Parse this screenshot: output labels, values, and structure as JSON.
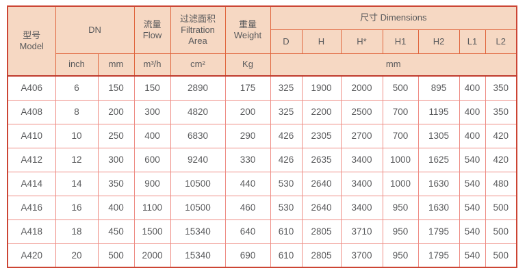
{
  "colors": {
    "header_bg": "#f6d8c3",
    "border_outer": "#cc4534",
    "border_header": "#e0653d",
    "border_data": "#ee8c84",
    "border_sep": "#bf3a2c",
    "text": "#58595b"
  },
  "table": {
    "header": {
      "model": "型号\nModel",
      "dn": "DN",
      "flow": "流量\nFlow",
      "filtration": "过滤面积\nFiltration\nArea",
      "weight": "重量\nWeight",
      "dimensions": "尺寸 Dimensions",
      "dim_cols": [
        "D",
        "H",
        "H*",
        "H1",
        "H2",
        "L1",
        "L2"
      ],
      "unit_inch": "inch",
      "unit_mm": "mm",
      "unit_flow": "m³/h",
      "unit_area": "cm²",
      "unit_weight": "Kg",
      "unit_dims": "mm"
    },
    "rows": [
      [
        "A406",
        "6",
        "150",
        "150",
        "2890",
        "175",
        "325",
        "1900",
        "2000",
        "500",
        "895",
        "400",
        "350"
      ],
      [
        "A408",
        "8",
        "200",
        "300",
        "4820",
        "200",
        "325",
        "2200",
        "2500",
        "700",
        "1195",
        "400",
        "350"
      ],
      [
        "A410",
        "10",
        "250",
        "400",
        "6830",
        "290",
        "426",
        "2305",
        "2700",
        "700",
        "1305",
        "400",
        "420"
      ],
      [
        "A412",
        "12",
        "300",
        "600",
        "9240",
        "330",
        "426",
        "2635",
        "3400",
        "1000",
        "1625",
        "540",
        "420"
      ],
      [
        "A414",
        "14",
        "350",
        "900",
        "10500",
        "440",
        "530",
        "2640",
        "3400",
        "1000",
        "1630",
        "540",
        "480"
      ],
      [
        "A416",
        "16",
        "400",
        "1100",
        "10500",
        "460",
        "530",
        "2640",
        "3400",
        "950",
        "1630",
        "540",
        "500"
      ],
      [
        "A418",
        "18",
        "450",
        "1500",
        "15340",
        "640",
        "610",
        "2805",
        "3710",
        "950",
        "1795",
        "540",
        "500"
      ],
      [
        "A420",
        "20",
        "500",
        "2000",
        "15340",
        "690",
        "610",
        "2805",
        "3700",
        "950",
        "1795",
        "540",
        "500"
      ]
    ]
  }
}
